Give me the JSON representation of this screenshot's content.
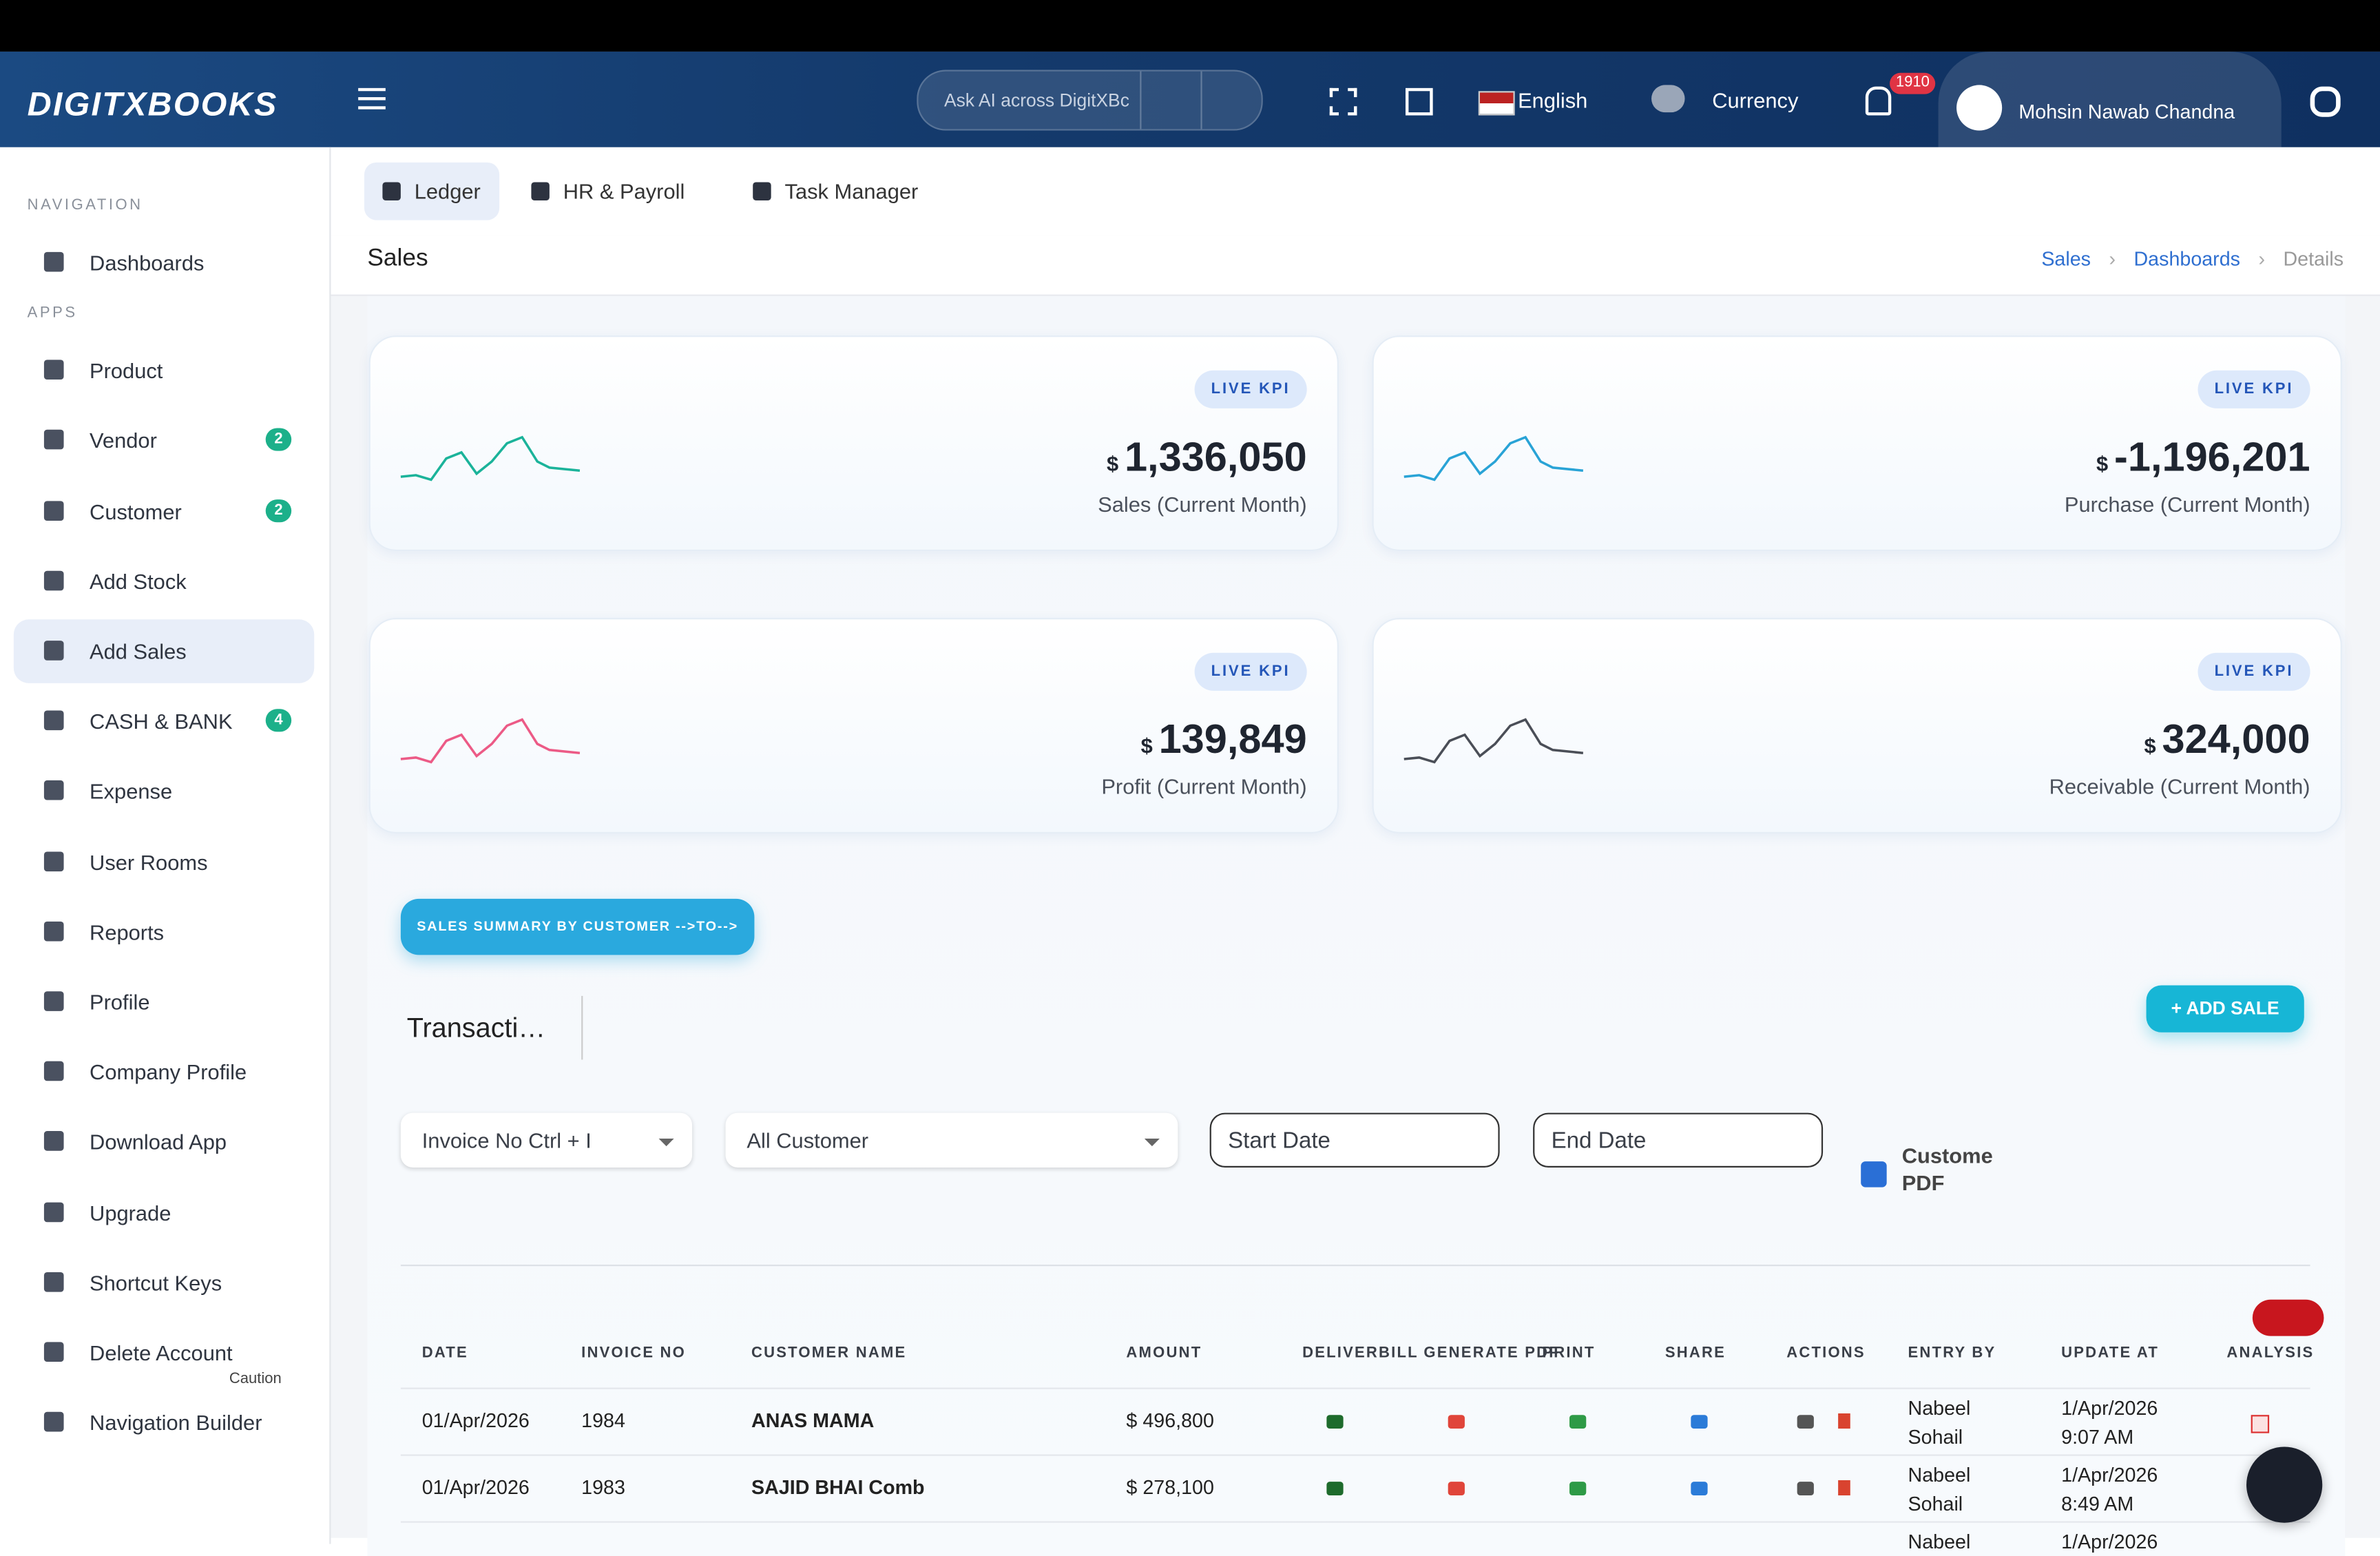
{
  "brand": "DIGITXBOOKS",
  "topbar": {
    "search_placeholder": "Ask AI across DigitXBc",
    "language": "English",
    "currency": "Currency",
    "notifications": "1910",
    "user": "Mohsin Nawab Chandna"
  },
  "sidebar": {
    "sections": [
      {
        "title": "NAVIGATION",
        "items": [
          {
            "label": "Dashboards"
          }
        ]
      },
      {
        "title": "APPS",
        "items": [
          {
            "label": "Product"
          },
          {
            "label": "Vendor",
            "badge": "2"
          },
          {
            "label": "Customer",
            "badge": "2"
          },
          {
            "label": "Add Stock"
          },
          {
            "label": "Add Sales",
            "active": true
          },
          {
            "label": "CASH & BANK",
            "badge": "4"
          },
          {
            "label": "Expense"
          },
          {
            "label": "User Rooms"
          },
          {
            "label": "Reports"
          },
          {
            "label": "Profile"
          },
          {
            "label": "Company Profile"
          },
          {
            "label": "Download App"
          },
          {
            "label": "Upgrade"
          },
          {
            "label": "Shortcut Keys"
          },
          {
            "label": "Delete Account",
            "note": "Caution"
          },
          {
            "label": "Navigation Builder"
          }
        ]
      }
    ]
  },
  "tabs": [
    "Ledger",
    "HR & Payroll",
    "Task Manager"
  ],
  "page_title": "Sales",
  "breadcrumb": [
    "Sales",
    "Dashboards",
    "Details"
  ],
  "kpis": [
    {
      "tag": "LIVE KPI",
      "currency": "$",
      "value": "1,336,050",
      "label": "Sales (Current Month)",
      "color": "#1bb39a"
    },
    {
      "tag": "LIVE KPI",
      "currency": "$",
      "value": "-1,196,201",
      "label": "Purchase (Current Month)",
      "color": "#29a3d6"
    },
    {
      "tag": "LIVE KPI",
      "currency": "$",
      "value": "139,849",
      "label": "Profit (Current Month)",
      "color": "#ec5a86"
    },
    {
      "tag": "LIVE KPI",
      "currency": "$",
      "value": "324,000",
      "label": "Receivable (Current Month)",
      "color": "#4a4e57"
    }
  ],
  "summary_button": "SALES SUMMARY BY CUSTOMER -->TO-->",
  "transactions_title": "Transacti…",
  "add_sale": "+ ADD SALE",
  "filters": {
    "invoice": "Invoice No Ctrl + I",
    "customer": "All Customer",
    "start_date": "Start Date",
    "end_date": "End Date",
    "custom_pdf": "Custome PDF"
  },
  "table": {
    "columns": [
      "DATE",
      "INVOICE NO",
      "CUSTOMER NAME",
      "AMOUNT",
      "DELIVERBILL",
      "GENERATE PDF",
      "PRINT",
      "SHARE",
      "ACTIONS",
      "ENTRY BY",
      "UPDATE AT",
      "ANALYSIS"
    ],
    "rows": [
      {
        "date": "01/Apr/2026",
        "invoice_no": "1984",
        "customer": "ANAS MAMA",
        "amount": "$ 496,800",
        "entry_by": "Nabeel Sohail",
        "update_at": "1/Apr/2026 9:07 AM"
      },
      {
        "date": "01/Apr/2026",
        "invoice_no": "1983",
        "customer": "SAJID BHAI Comb",
        "amount": "$ 278,100",
        "entry_by": "Nabeel Sohail",
        "update_at": "1/Apr/2026 8:49 AM"
      },
      {
        "entry_by": "Nabeel",
        "update_at": "1/Apr/2026"
      }
    ]
  }
}
